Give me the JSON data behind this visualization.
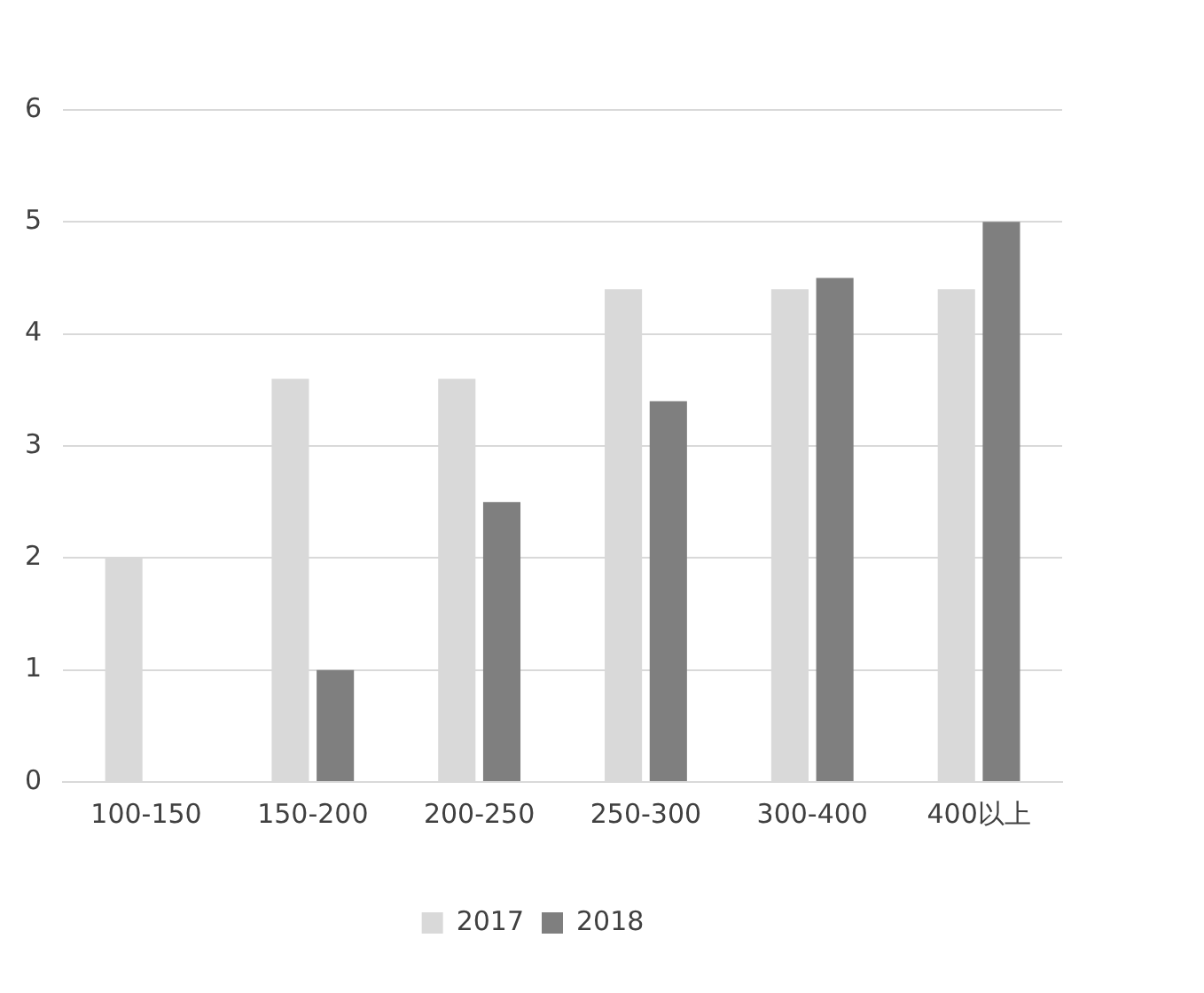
{
  "chart_data": {
    "type": "bar",
    "categories": [
      "100-150",
      "150-200",
      "200-250",
      "250-300",
      "300-400",
      "400以上"
    ],
    "series": [
      {
        "name": "2017",
        "color": "#d9d9d9",
        "values": [
          2,
          3.6,
          3.6,
          4.4,
          4.4,
          4.4
        ]
      },
      {
        "name": "2018",
        "color": "#7f7f7f",
        "values": [
          null,
          1,
          2.5,
          3.4,
          4.5,
          5
        ]
      }
    ],
    "ylim": [
      0,
      6
    ],
    "yticks": [
      0,
      1,
      2,
      3,
      4,
      5,
      6
    ],
    "grid": "y",
    "legend": "bottom"
  }
}
